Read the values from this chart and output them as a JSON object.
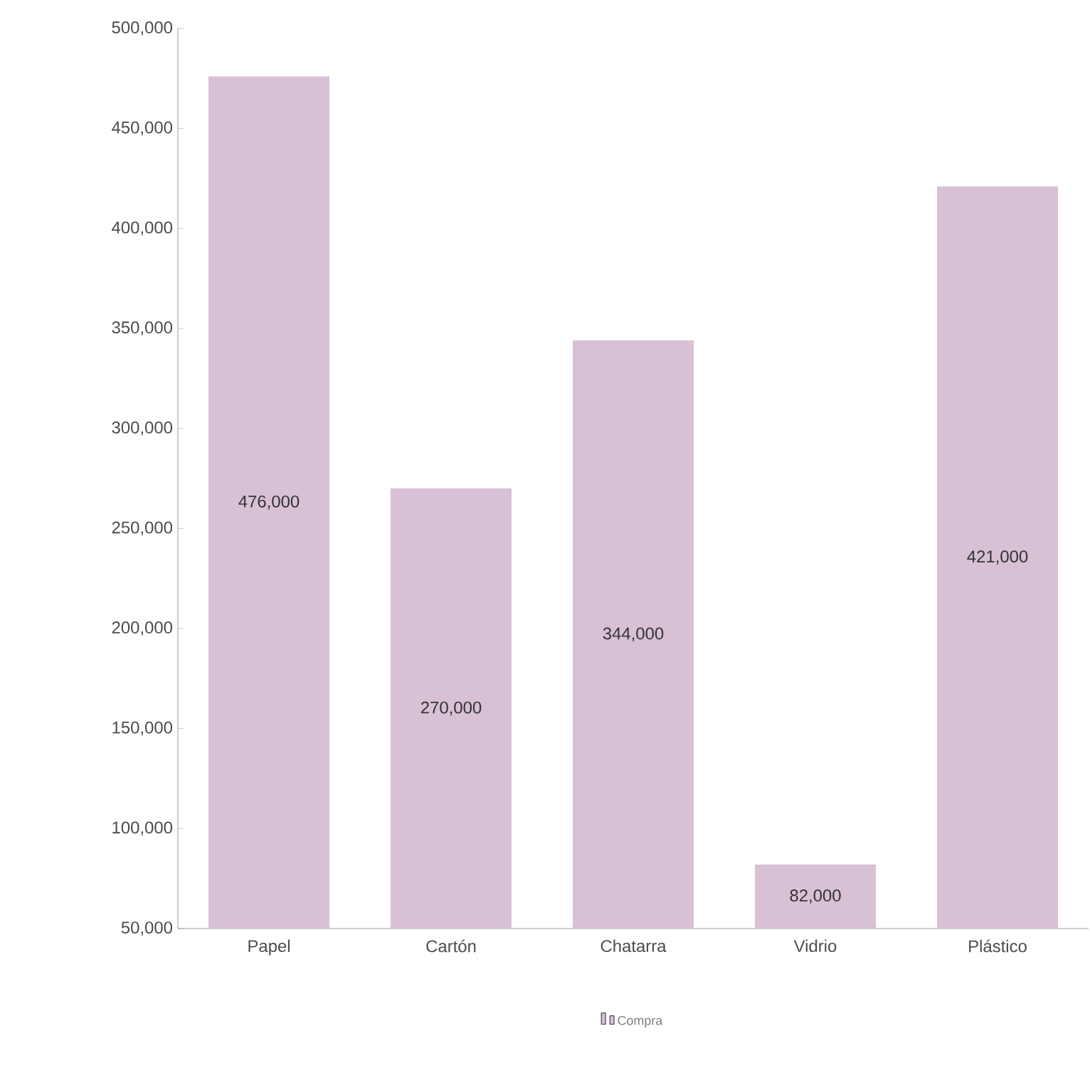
{
  "chart_data": {
    "type": "bar",
    "categories": [
      "Papel",
      "Cartón",
      "Chatarra",
      "Vidrio",
      "Plástico"
    ],
    "series": [
      {
        "name": "Compra",
        "color": "#d8c0d5",
        "values": [
          476000,
          270000,
          344000,
          82000,
          421000
        ],
        "value_labels": [
          "476,000",
          "270,000",
          "344,000",
          "82,000",
          "421,000"
        ]
      }
    ],
    "ylim": [
      50000,
      500000
    ],
    "yticks": [
      {
        "value": 50000,
        "label": "50,000"
      },
      {
        "value": 100000,
        "label": "100,000"
      },
      {
        "value": 150000,
        "label": "150,000"
      },
      {
        "value": 200000,
        "label": "200,000"
      },
      {
        "value": 250000,
        "label": "250,000"
      },
      {
        "value": 300000,
        "label": "300,000"
      },
      {
        "value": 350000,
        "label": "350,000"
      },
      {
        "value": 400000,
        "label": "400,000"
      },
      {
        "value": 450000,
        "label": "450,000"
      },
      {
        "value": 500000,
        "label": "500,000"
      }
    ],
    "grid": false,
    "legend": "bottom"
  }
}
